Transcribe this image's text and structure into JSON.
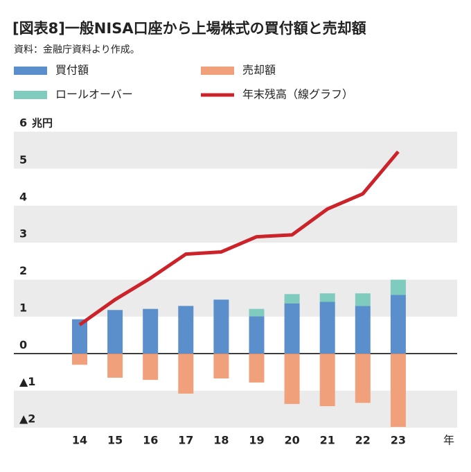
{
  "chart_data": {
    "type": "bar",
    "title": "[図表8]一般NISA口座から上場株式の買付額と売却額",
    "subtitle": "資料：金融庁資料より作成。",
    "y_unit": "兆円",
    "x_unit": "年",
    "categories": [
      "14",
      "15",
      "16",
      "17",
      "18",
      "19",
      "20",
      "21",
      "22",
      "23"
    ],
    "series": [
      {
        "name": "買付額",
        "color": "#5b8fcc",
        "stack": "pos",
        "values": [
          0.93,
          1.18,
          1.21,
          1.29,
          1.46,
          1.01,
          1.36,
          1.4,
          1.29,
          1.59
        ]
      },
      {
        "name": "ロールオーバー",
        "color": "#7fcbbd",
        "stack": "pos",
        "values": [
          null,
          null,
          null,
          null,
          null,
          0.2,
          0.25,
          0.23,
          0.34,
          0.41
        ]
      },
      {
        "name": "売却額",
        "color": "#f0a07a",
        "stack": "neg",
        "values": [
          -0.3,
          -0.65,
          -0.71,
          -1.08,
          -0.67,
          -0.78,
          -1.36,
          -1.42,
          -1.33,
          -1.98
        ]
      },
      {
        "name": "年末残高（線グラフ）",
        "color": "#cc2229",
        "type": "line",
        "values": [
          0.78,
          1.46,
          2.04,
          2.69,
          2.75,
          3.16,
          3.21,
          3.91,
          4.32,
          5.46
        ]
      }
    ],
    "ylim": [
      -2,
      6
    ],
    "yticks": [
      6,
      5,
      4,
      3,
      2,
      1,
      0,
      {
        "value": -1,
        "label": "▲1"
      },
      {
        "value": -2,
        "label": "▲2"
      }
    ]
  }
}
